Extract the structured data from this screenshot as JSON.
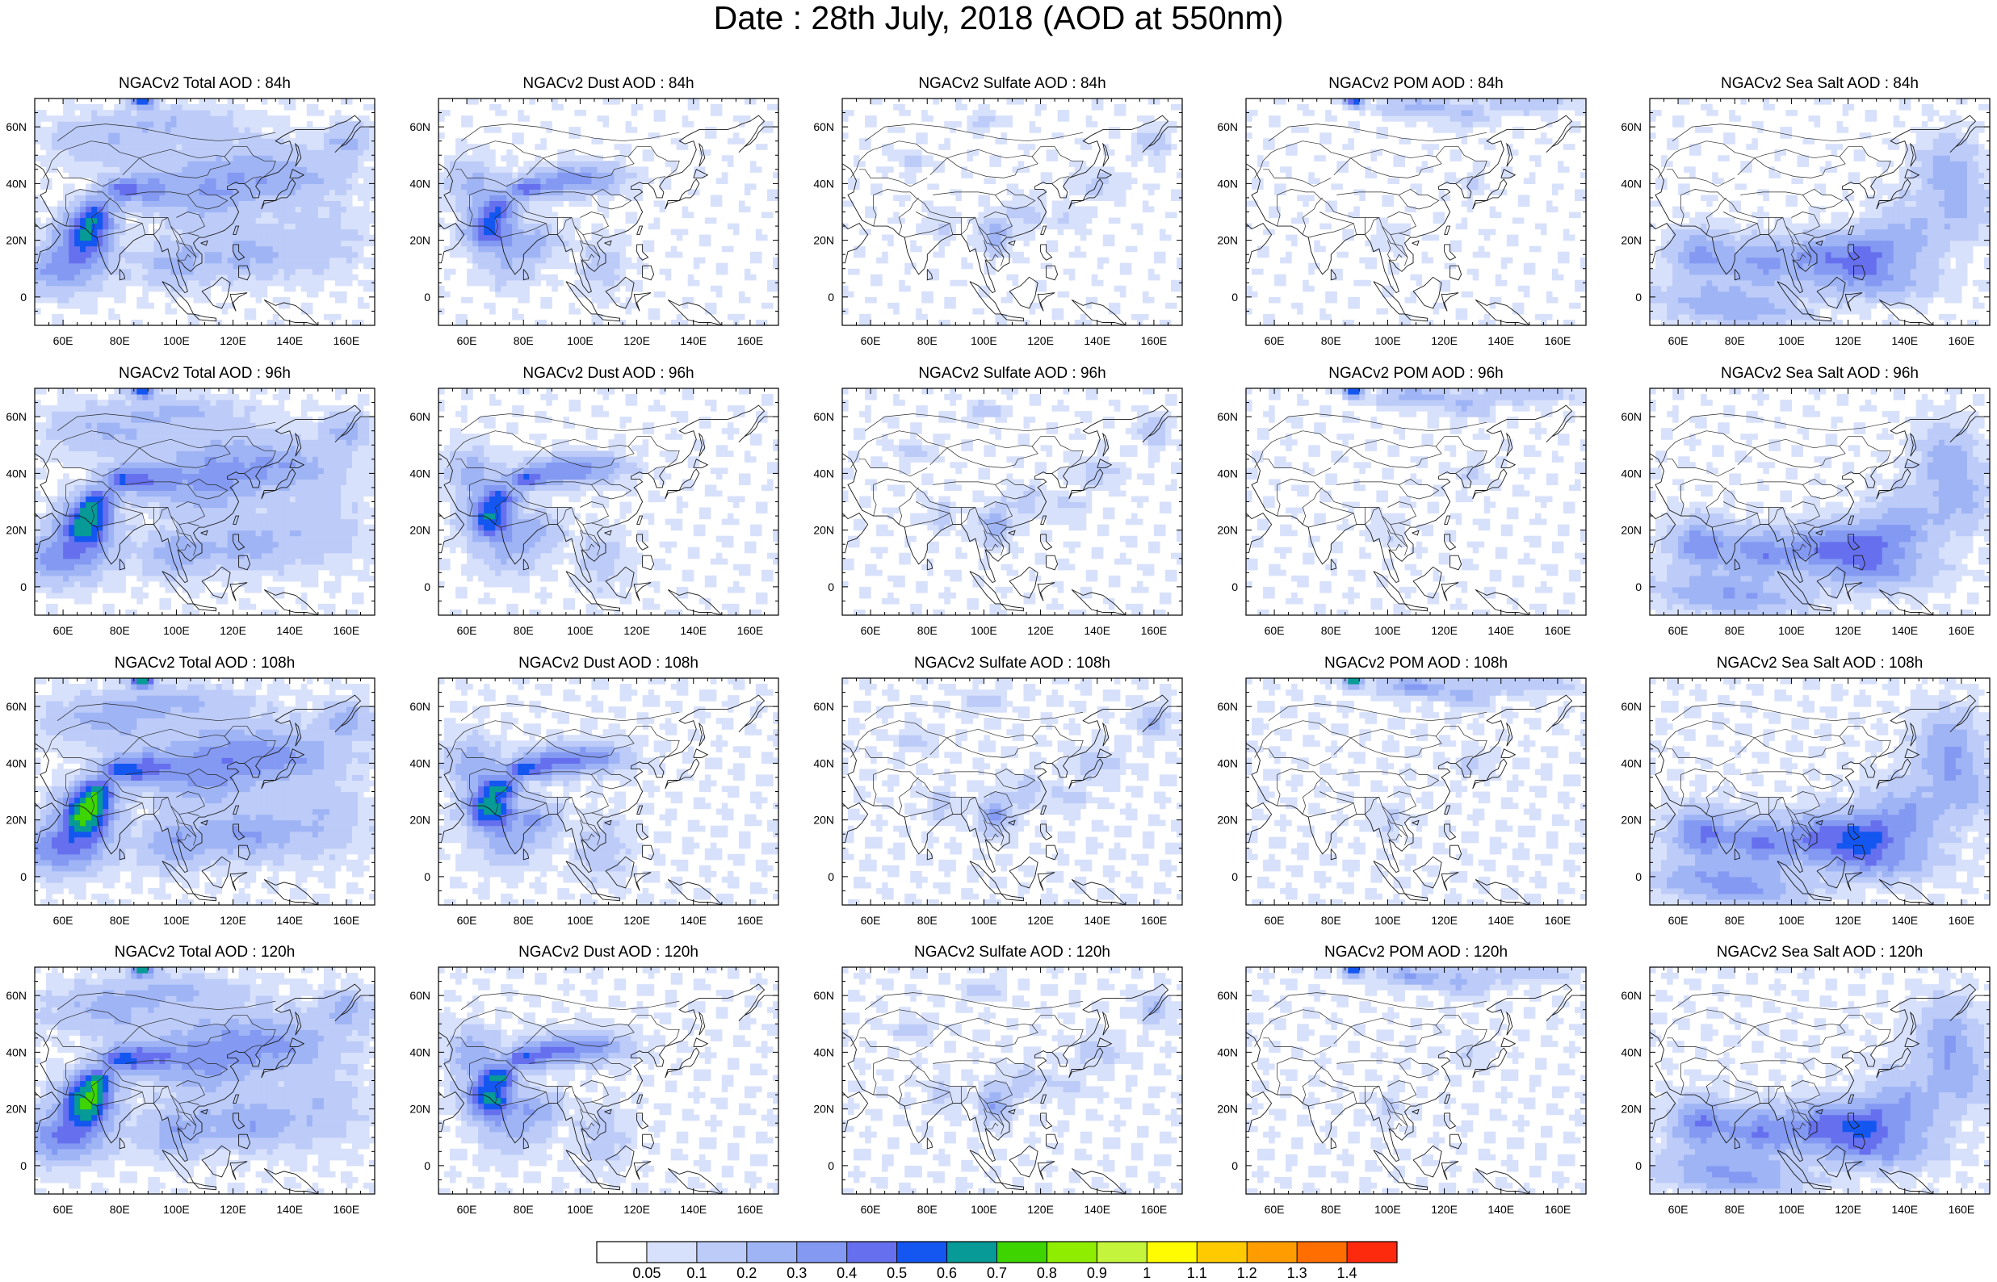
{
  "title": "Date : 28th July, 2018 (AOD at 550nm)",
  "axes": {
    "x_ticks": [
      "60E",
      "80E",
      "100E",
      "120E",
      "140E",
      "160E"
    ],
    "y_ticks": [
      "60N",
      "40N",
      "20N",
      "0"
    ]
  },
  "panels": [
    {
      "title": "NGACv2 Total AOD : 84h",
      "species": "total"
    },
    {
      "title": "NGACv2 Dust AOD : 84h",
      "species": "dust"
    },
    {
      "title": "NGACv2 Sulfate AOD : 84h",
      "species": "sulfate"
    },
    {
      "title": "NGACv2 POM AOD : 84h",
      "species": "pom"
    },
    {
      "title": "NGACv2 Sea Salt AOD : 84h",
      "species": "seasalt"
    },
    {
      "title": "NGACv2 Total AOD : 96h",
      "species": "total"
    },
    {
      "title": "NGACv2 Dust AOD : 96h",
      "species": "dust"
    },
    {
      "title": "NGACv2 Sulfate AOD : 96h",
      "species": "sulfate"
    },
    {
      "title": "NGACv2 POM AOD : 96h",
      "species": "pom"
    },
    {
      "title": "NGACv2 Sea Salt AOD : 96h",
      "species": "seasalt"
    },
    {
      "title": "NGACv2 Total AOD : 108h",
      "species": "total"
    },
    {
      "title": "NGACv2 Dust AOD : 108h",
      "species": "dust"
    },
    {
      "title": "NGACv2 Sulfate AOD : 108h",
      "species": "sulfate"
    },
    {
      "title": "NGACv2 POM AOD : 108h",
      "species": "pom"
    },
    {
      "title": "NGACv2 Sea Salt AOD : 108h",
      "species": "seasalt"
    },
    {
      "title": "NGACv2 Total AOD : 120h",
      "species": "total"
    },
    {
      "title": "NGACv2 Dust AOD : 120h",
      "species": "dust"
    },
    {
      "title": "NGACv2 Sulfate AOD : 120h",
      "species": "sulfate"
    },
    {
      "title": "NGACv2 POM AOD : 120h",
      "species": "pom"
    },
    {
      "title": "NGACv2 Sea Salt  AOD : 120h",
      "species": "seasalt"
    }
  ],
  "colorbar": {
    "colors": [
      "#ffffff",
      "#d8e1fb",
      "#bccbf8",
      "#9fb4f5",
      "#8399f2",
      "#6670ee",
      "#1456f0",
      "#079a96",
      "#3ed400",
      "#8fee00",
      "#c4f53c",
      "#fffb00",
      "#ffcb00",
      "#ff9d00",
      "#ff6e00",
      "#fe2a0e"
    ],
    "labels": [
      "0.05",
      "0.1",
      "0.2",
      "0.3",
      "0.4",
      "0.5",
      "0.6",
      "0.7",
      "0.8",
      "0.9",
      "1",
      "1.1",
      "1.2",
      "1.3",
      "1.4"
    ]
  }
}
